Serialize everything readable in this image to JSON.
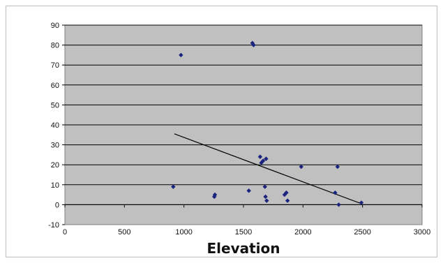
{
  "chart_data": {
    "type": "scatter",
    "title": "",
    "xlabel": "Elevation",
    "ylabel": "",
    "xlim": [
      0,
      3000
    ],
    "ylim": [
      -10,
      90
    ],
    "x_ticks": [
      0,
      500,
      1000,
      1500,
      2000,
      2500,
      3000
    ],
    "y_ticks": [
      -10,
      0,
      10,
      20,
      30,
      40,
      50,
      60,
      70,
      80,
      90
    ],
    "grid": "horizontal",
    "legend": "none",
    "plot_background": "#c0c0c0",
    "point_color": "#1a237e",
    "line_color": "#000000",
    "points": [
      {
        "x": 910,
        "y": 9
      },
      {
        "x": 975,
        "y": 75
      },
      {
        "x": 1255,
        "y": 4
      },
      {
        "x": 1260,
        "y": 5
      },
      {
        "x": 1545,
        "y": 7
      },
      {
        "x": 1575,
        "y": 81
      },
      {
        "x": 1585,
        "y": 80
      },
      {
        "x": 1640,
        "y": 24
      },
      {
        "x": 1650,
        "y": 21
      },
      {
        "x": 1665,
        "y": 22
      },
      {
        "x": 1690,
        "y": 23
      },
      {
        "x": 1680,
        "y": 9
      },
      {
        "x": 1685,
        "y": 4
      },
      {
        "x": 1695,
        "y": 2
      },
      {
        "x": 1845,
        "y": 5
      },
      {
        "x": 1860,
        "y": 6
      },
      {
        "x": 1870,
        "y": 2
      },
      {
        "x": 1985,
        "y": 19
      },
      {
        "x": 2270,
        "y": 6
      },
      {
        "x": 2290,
        "y": 19
      },
      {
        "x": 2300,
        "y": 0
      },
      {
        "x": 2490,
        "y": 1
      }
    ],
    "trendline": {
      "x": [
        920,
        2490
      ],
      "y": [
        35.5,
        0.5
      ]
    }
  }
}
